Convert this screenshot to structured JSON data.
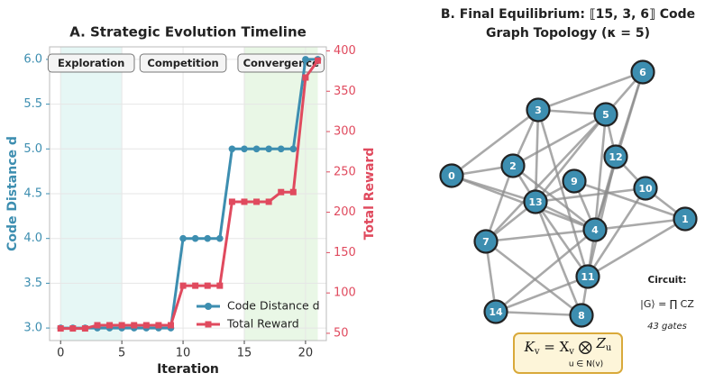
{
  "chart_data": [
    {
      "type": "line",
      "title": "A. Strategic Evolution Timeline",
      "x_label": "Iteration",
      "y_label": "Code Distance d",
      "y2_label": "Total Reward",
      "x": [
        0,
        1,
        2,
        3,
        4,
        5,
        6,
        7,
        8,
        9,
        10,
        11,
        12,
        13,
        14,
        15,
        16,
        17,
        18,
        19,
        20,
        21
      ],
      "series": [
        {
          "name": "Code Distance d",
          "color": "#3d8eb0",
          "marker": "circle",
          "values": [
            3,
            3,
            3,
            3,
            3,
            3,
            3,
            3,
            3,
            3,
            4,
            4,
            4,
            4,
            5,
            5,
            5,
            5,
            5,
            5,
            6,
            6
          ]
        },
        {
          "name": "Total Reward",
          "color": "#e04a5e",
          "marker": "square",
          "axis": "y2",
          "values": [
            56,
            56,
            56,
            60,
            60,
            60,
            60,
            60,
            60,
            60,
            109,
            109,
            109,
            109,
            213,
            213,
            213,
            213,
            225,
            225,
            367,
            388
          ]
        }
      ],
      "xlim": [
        -0.9,
        21.7
      ],
      "xticks": [
        0,
        5,
        10,
        15,
        20
      ],
      "ylim": [
        2.86,
        6.14
      ],
      "yticks": [
        {
          "value": 3,
          "label": "3.0"
        },
        {
          "value": 3.5,
          "label": "3.5"
        },
        {
          "value": 4,
          "label": "4.0"
        },
        {
          "value": 4.5,
          "label": "4.5"
        },
        {
          "value": 5,
          "label": "5.0"
        },
        {
          "value": 5.5,
          "label": "5.5"
        },
        {
          "value": 6,
          "label": "6.0"
        }
      ],
      "y2lim": [
        41,
        405
      ],
      "y2ticks": [
        50,
        100,
        150,
        200,
        250,
        300,
        350,
        400
      ],
      "grid": true,
      "legend": "lower right",
      "phases": [
        {
          "label": "Exploration",
          "range": [
            0,
            5
          ],
          "color": "#e6f7f5"
        },
        {
          "label": "Competition",
          "range": [
            5,
            15
          ],
          "color": null
        },
        {
          "label": "Convergence",
          "range": [
            15,
            21
          ],
          "color": "#e9f7e6"
        }
      ]
    },
    {
      "type": "graph",
      "title": [
        "B. Final Equilibrium: ⟦15, 3, 6⟧ Code",
        "Graph Topology (κ = 5)"
      ],
      "nodes": [
        "0",
        "1",
        "2",
        "3",
        "4",
        "5",
        "6",
        "7",
        "8",
        "9",
        "10",
        "11",
        "12",
        "13",
        "14"
      ],
      "edges": [
        [
          6,
          3
        ],
        [
          6,
          5
        ],
        [
          6,
          12
        ],
        [
          6,
          4
        ],
        [
          3,
          5
        ],
        [
          3,
          2
        ],
        [
          3,
          0
        ],
        [
          3,
          13
        ],
        [
          3,
          11
        ],
        [
          5,
          2
        ],
        [
          5,
          13
        ],
        [
          5,
          7
        ],
        [
          5,
          4
        ],
        [
          5,
          12
        ],
        [
          2,
          0
        ],
        [
          2,
          13
        ],
        [
          2,
          7
        ],
        [
          2,
          4
        ],
        [
          0,
          13
        ],
        [
          0,
          4
        ],
        [
          12,
          4
        ],
        [
          12,
          10
        ],
        [
          12,
          11
        ],
        [
          9,
          13
        ],
        [
          9,
          1
        ],
        [
          9,
          4
        ],
        [
          10,
          1
        ],
        [
          10,
          13
        ],
        [
          10,
          11
        ],
        [
          13,
          7
        ],
        [
          13,
          4
        ],
        [
          13,
          8
        ],
        [
          13,
          11
        ],
        [
          4,
          1
        ],
        [
          4,
          7
        ],
        [
          4,
          14
        ],
        [
          4,
          11
        ],
        [
          7,
          14
        ],
        [
          7,
          8
        ],
        [
          11,
          8
        ],
        [
          11,
          14
        ],
        [
          11,
          1
        ],
        [
          14,
          8
        ]
      ],
      "node_color": "#3d8eb0",
      "circuit_title": "Circuit:",
      "circuit_formula": "|G⟩ = ∏ CZ",
      "circuit_gates": "43 gates",
      "stabilizer": {
        "k": "K",
        "k_sub": "v",
        "eq": " = X",
        "x_sub": "v",
        "op": " ⨂ ",
        "op_sub": "u ∈ N(v)",
        "z": "Z",
        "z_sub": "u"
      }
    }
  ]
}
